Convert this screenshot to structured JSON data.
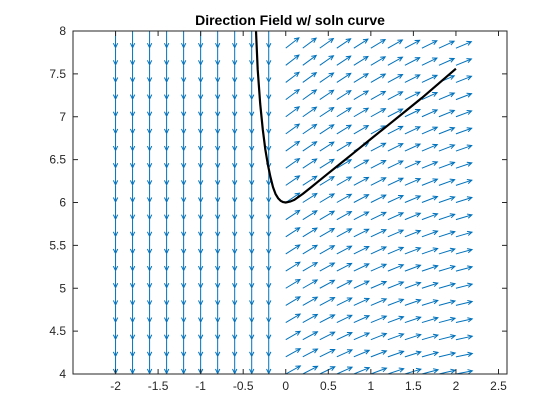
{
  "chart_data": {
    "type": "quiver",
    "title": "Direction Field w/ soln curve",
    "xlabel": "",
    "ylabel": "",
    "xlim": [
      -2.5,
      2.6
    ],
    "ylim": [
      4,
      8
    ],
    "x_ticks": [
      -2,
      -1.5,
      -1,
      -0.5,
      0,
      0.5,
      1,
      1.5,
      2,
      2.5
    ],
    "x_tick_labels": [
      "-2",
      "-1.5",
      "-1",
      "-0.5",
      "0",
      "0.5",
      "1",
      "1.5",
      "2",
      "2.5"
    ],
    "y_ticks": [
      4,
      4.5,
      5,
      5.5,
      6,
      6.5,
      7,
      7.5,
      8
    ],
    "y_tick_labels": [
      "4",
      "4.5",
      "5",
      "5.5",
      "6",
      "6.5",
      "7",
      "7.5",
      "8"
    ],
    "grid": false,
    "field": {
      "name": "direction field",
      "color": "#0072BD",
      "x_values": [
        -2,
        -1.8,
        -1.6,
        -1.4,
        -1.2,
        -1,
        -0.8,
        -0.6,
        -0.4,
        -0.2,
        0,
        0.2,
        0.4,
        0.6,
        0.8,
        1,
        1.2,
        1.4,
        1.6,
        1.8,
        2
      ],
      "y_values": [
        4,
        4.2,
        4.4,
        4.6,
        4.8,
        5,
        5.2,
        5.4,
        5.6,
        5.8,
        6,
        6.2,
        6.4,
        6.6,
        6.8,
        7,
        7.2,
        7.4,
        7.6,
        7.8,
        8
      ],
      "arrow_spacing_units": 0.2
    },
    "series": [
      {
        "color": "#000000",
        "x": [
          -0.35,
          -0.33,
          -0.3,
          -0.27,
          -0.24,
          -0.21,
          -0.18,
          -0.15,
          -0.12,
          -0.09,
          -0.06,
          -0.03,
          0,
          0.05,
          0.1,
          0.2,
          0.3,
          0.4,
          0.5,
          0.6,
          0.8,
          1,
          1.2,
          1.4,
          1.6,
          1.8,
          2
        ],
        "y": [
          8.0,
          7.55,
          7.15,
          6.85,
          6.62,
          6.44,
          6.3,
          6.18,
          6.1,
          6.05,
          6.02,
          6.005,
          6.0,
          6.01,
          6.03,
          6.1,
          6.18,
          6.26,
          6.34,
          6.42,
          6.58,
          6.74,
          6.9,
          7.06,
          7.22,
          7.39,
          7.56
        ]
      }
    ]
  }
}
